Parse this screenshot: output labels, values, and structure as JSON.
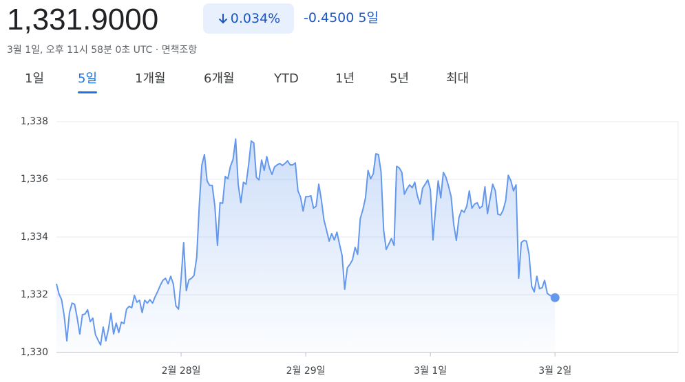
{
  "header": {
    "price": "1,331.9000",
    "change_percent": "0.034%",
    "change": "-0.4500",
    "period": "5일",
    "timestamp": "3월 1일, 오후 11시 58분 0초 UTC ·",
    "disclaimer": "면책조항"
  },
  "tabs": [
    "1일",
    "5일",
    "1개월",
    "6개월",
    "YTD",
    "1년",
    "5년",
    "최대"
  ],
  "selected_tab": 1,
  "chart_data": {
    "type": "area",
    "color": "#6498ec",
    "x": [
      0,
      0.5,
      1,
      1.5,
      2,
      2.5,
      3,
      3.5,
      4,
      4.5,
      5,
      5.5,
      6,
      6.5,
      7,
      7.5,
      8,
      8.5,
      9,
      9.5,
      10,
      10.5,
      11,
      11.5,
      12,
      12.5,
      13,
      13.5,
      14,
      14.5,
      15,
      15.5,
      16,
      16.5,
      17,
      17.5,
      18,
      18.5,
      19,
      19.5,
      20,
      20.5,
      21,
      21.5,
      22,
      22.5,
      23,
      23.5,
      24,
      24.5,
      25,
      25.5,
      26,
      26.5,
      27,
      27.5,
      28,
      28.5,
      29,
      29.5,
      30,
      30.5,
      31,
      31.5,
      32,
      32.5,
      33,
      33.5,
      34,
      34.5,
      35,
      35.5,
      36,
      36.5,
      37,
      37.5,
      38,
      38.5,
      39,
      39.5,
      40,
      40.5,
      41,
      41.5,
      42,
      42.5,
      43,
      43.5,
      44,
      44.5,
      45,
      45.5,
      46,
      46.5,
      47,
      47.5,
      48,
      48.5,
      49,
      49.5,
      50,
      50.5,
      51,
      51.5,
      52,
      52.5,
      53,
      53.5,
      54,
      54.5,
      55,
      55.5,
      56,
      56.5,
      57,
      57.5,
      58,
      58.5,
      59,
      59.5,
      60,
      60.5,
      61,
      61.5,
      62,
      62.5,
      63,
      63.5,
      64,
      64.5,
      65,
      65.5,
      66,
      66.5,
      67,
      67.5,
      68,
      68.5,
      69,
      69.5,
      70,
      70.5,
      71,
      71.5,
      72,
      72.5,
      73,
      73.5,
      74,
      74.5,
      75,
      75.5,
      76,
      76.5,
      77,
      77.5,
      78,
      78.5,
      79,
      79.5,
      80,
      80.5,
      81,
      81.5,
      82,
      82.5,
      83,
      83.5,
      84,
      84.5,
      85,
      85.5,
      86,
      86.5,
      87,
      87.5,
      88,
      88.5,
      89,
      89.5,
      90,
      90.5,
      91,
      91.5,
      92,
      92.5,
      93,
      93.5,
      94,
      94.5,
      95,
      95.5,
      96
    ],
    "values": [
      1332.38,
      1332.02,
      1331.83,
      1331.26,
      1330.4,
      1331.38,
      1331.71,
      1331.67,
      1331.19,
      1330.64,
      1331.31,
      1331.33,
      1331.48,
      1331.07,
      1331.19,
      1330.62,
      1330.43,
      1330.26,
      1330.88,
      1330.4,
      1330.79,
      1331.36,
      1330.64,
      1331.02,
      1330.69,
      1331.05,
      1331.0,
      1331.5,
      1331.6,
      1331.55,
      1331.98,
      1331.74,
      1331.81,
      1331.38,
      1331.81,
      1331.71,
      1331.83,
      1331.71,
      1331.93,
      1332.12,
      1332.33,
      1332.5,
      1332.57,
      1332.38,
      1332.64,
      1332.38,
      1331.62,
      1331.5,
      1332.57,
      1333.81,
      1332.14,
      1332.52,
      1332.57,
      1332.67,
      1333.29,
      1335.12,
      1336.5,
      1336.86,
      1335.95,
      1335.79,
      1335.79,
      1335.07,
      1333.71,
      1335.19,
      1335.17,
      1336.1,
      1336.02,
      1336.45,
      1336.69,
      1337.4,
      1335.83,
      1335.19,
      1335.9,
      1335.83,
      1336.5,
      1337.33,
      1337.26,
      1336.07,
      1335.98,
      1336.67,
      1336.31,
      1336.79,
      1336.4,
      1336.17,
      1336.43,
      1336.5,
      1336.55,
      1336.48,
      1336.55,
      1336.64,
      1336.5,
      1336.5,
      1336.57,
      1335.6,
      1335.38,
      1334.9,
      1335.4,
      1335.4,
      1335.43,
      1335.0,
      1335.07,
      1335.83,
      1335.31,
      1334.6,
      1334.24,
      1333.86,
      1334.12,
      1333.9,
      1334.17,
      1333.76,
      1333.36,
      1332.19,
      1332.93,
      1333.05,
      1333.21,
      1333.64,
      1333.4,
      1334.64,
      1334.95,
      1335.36,
      1336.31,
      1336.02,
      1336.19,
      1336.88,
      1336.86,
      1336.26,
      1334.24,
      1333.57,
      1333.76,
      1333.95,
      1333.71,
      1336.45,
      1336.4,
      1336.24,
      1335.48,
      1335.67,
      1335.81,
      1335.71,
      1335.9,
      1335.43,
      1335.14,
      1335.69,
      1335.83,
      1335.98,
      1335.64,
      1333.9,
      1334.98,
      1335.95,
      1335.36,
      1336.24,
      1336.07,
      1335.76,
      1335.4,
      1334.43,
      1333.88,
      1334.67,
      1334.93,
      1334.86,
      1335.07,
      1335.6,
      1335.0,
      1335.14,
      1335.19,
      1335.0,
      1335.07,
      1335.74,
      1334.81,
      1335.33,
      1335.83,
      1335.6,
      1334.79,
      1334.76,
      1334.93,
      1335.26,
      1336.14,
      1335.95,
      1335.6,
      1335.81,
      1332.57,
      1333.81,
      1333.88,
      1333.86,
      1333.4,
      1332.29,
      1332.1,
      1332.64,
      1332.21,
      1332.24,
      1332.5,
      1332.05,
      1331.98,
      1331.93,
      1331.9
    ],
    "xlim": [
      0,
      119.7
    ],
    "xticks": [
      {
        "value": 24,
        "label": "2월 28일"
      },
      {
        "value": 48,
        "label": "2월 29일"
      },
      {
        "value": 72,
        "label": "3월 1일"
      },
      {
        "value": 96,
        "label": "3월 2일"
      }
    ],
    "ylim": [
      1330,
      1338
    ],
    "yticks": [
      {
        "value": 1330,
        "label": "1,330"
      },
      {
        "value": 1332,
        "label": "1,332"
      },
      {
        "value": 1334,
        "label": "1,334"
      },
      {
        "value": 1336,
        "label": "1,336"
      },
      {
        "value": 1338,
        "label": "1,338"
      }
    ],
    "grid": true
  }
}
